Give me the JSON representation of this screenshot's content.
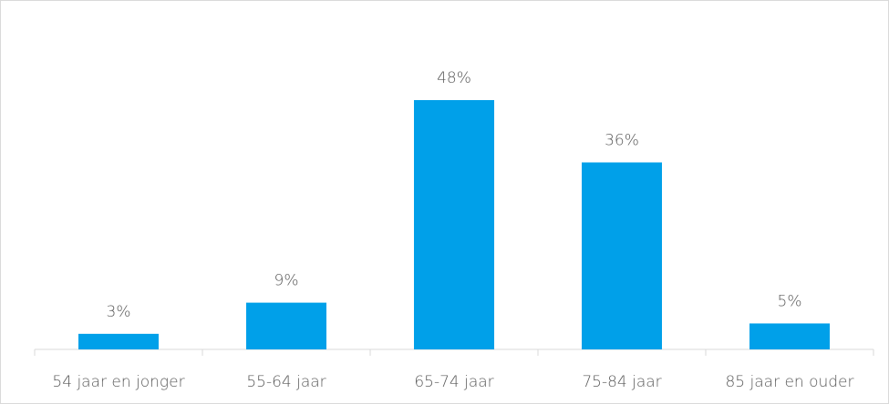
{
  "chart_data": {
    "type": "bar",
    "categories": [
      "54 jaar en jonger",
      "55-64 jaar",
      "65-74 jaar",
      "75-84 jaar",
      "85 jaar en ouder"
    ],
    "values": [
      3,
      9,
      48,
      36,
      5
    ],
    "value_labels": [
      "3%",
      "9%",
      "48%",
      "36%",
      "5%"
    ],
    "color": "#00a0e9"
  }
}
